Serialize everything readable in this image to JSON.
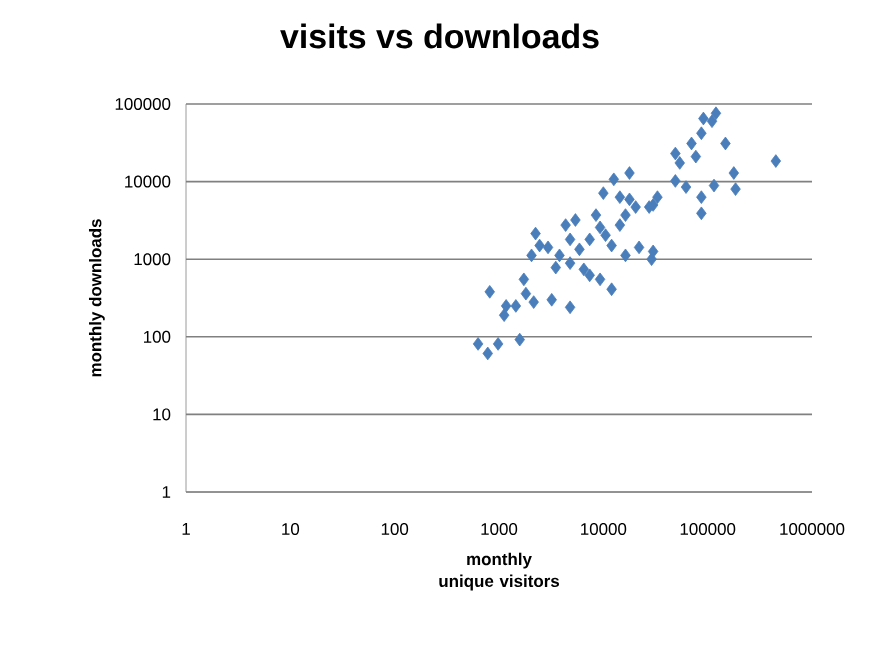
{
  "chart_data": {
    "type": "scatter",
    "title": "visits vs downloads",
    "xlabel": "monthly unique visitors",
    "ylabel": "monthly downloads",
    "log": "xy",
    "grid": "y",
    "marker": "diamond",
    "color": "#4a7ebb",
    "xlim": [
      1,
      1000000
    ],
    "ylim": [
      1,
      100000
    ],
    "xticks": [
      1,
      10,
      100,
      1000,
      10000,
      100000,
      1000000
    ],
    "yticks": [
      1,
      10,
      100,
      1000,
      10000,
      100000
    ],
    "x": [
      630,
      780,
      980,
      815,
      1580,
      1120,
      1170,
      1450,
      1810,
      1730,
      2150,
      3200,
      4800,
      2450,
      2050,
      2950,
      2240,
      4350,
      3800,
      4800,
      5900,
      7400,
      9300,
      6500,
      9300,
      12000,
      16300,
      22000,
      29000,
      14400,
      16300,
      20400,
      17800,
      14400,
      10000,
      12600,
      17800,
      33000,
      30000,
      30000,
      49000,
      62000,
      87000,
      87000,
      49000,
      54000,
      70000,
      87000,
      110000,
      120000,
      91000,
      148000,
      178000,
      185000,
      450000,
      115000,
      77000,
      7400,
      10500,
      5400,
      8500,
      4800,
      3500,
      12000,
      27500
    ],
    "values": [
      81,
      61,
      81,
      380,
      92,
      190,
      250,
      250,
      360,
      550,
      280,
      300,
      240,
      1500,
      1120,
      1420,
      2140,
      2750,
      1120,
      890,
      1340,
      1800,
      2570,
      740,
      550,
      410,
      1120,
      1420,
      1000,
      2750,
      3700,
      4700,
      5900,
      6300,
      7100,
      10700,
      12900,
      6300,
      5000,
      1260,
      10200,
      8500,
      6300,
      3900,
      23000,
      17400,
      31000,
      42000,
      60000,
      76000,
      65000,
      31000,
      12900,
      8000,
      18400,
      8900,
      21000,
      620,
      2040,
      3200,
      3700,
      1800,
      780,
      1500,
      4700
    ]
  }
}
